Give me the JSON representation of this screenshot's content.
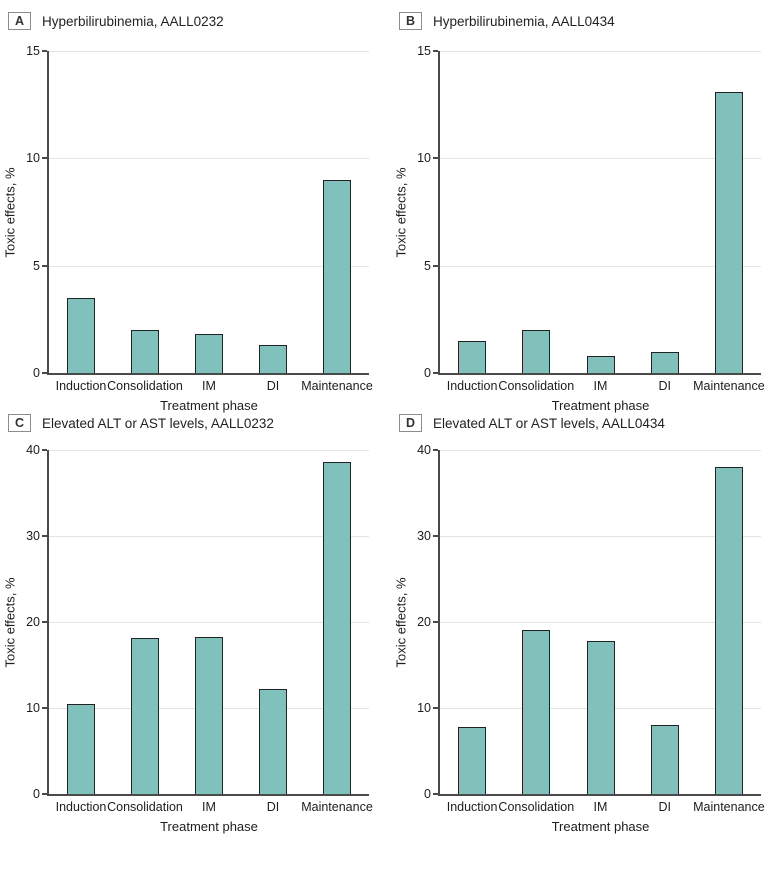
{
  "figure": {
    "background": "#ffffff",
    "colors": {
      "bar_fill": "#80c1bb",
      "bar_border": "#222222",
      "gridline": "#e4e4e4",
      "axis": "#4a4a4a",
      "text": "#1d1d1d",
      "panel_letter_border": "#8c8c8c"
    }
  },
  "chart_data": [
    {
      "type": "bar",
      "panel_letter": "A",
      "title": "Hyperbilirubinemia, AALL0232",
      "xlabel": "Treatment phase",
      "ylabel": "Toxic effects, %",
      "ylim": [
        0,
        15
      ],
      "yticks": [
        0,
        5,
        10,
        15
      ],
      "grid": "horizontal",
      "legend": "none",
      "categories": [
        "Induction",
        "Consolidation",
        "IM",
        "DI",
        "Maintenance"
      ],
      "values": [
        3.5,
        2.0,
        1.8,
        1.3,
        9.0
      ]
    },
    {
      "type": "bar",
      "panel_letter": "B",
      "title": "Hyperbilirubinemia, AALL0434",
      "xlabel": "Treatment phase",
      "ylabel": "Toxic effects, %",
      "ylim": [
        0,
        15
      ],
      "yticks": [
        0,
        5,
        10,
        15
      ],
      "grid": "horizontal",
      "legend": "none",
      "categories": [
        "Induction",
        "Consolidation",
        "IM",
        "DI",
        "Maintenance"
      ],
      "values": [
        1.5,
        2.0,
        0.8,
        1.0,
        13.1
      ]
    },
    {
      "type": "bar",
      "panel_letter": "C",
      "title": "Elevated ALT or AST levels, AALL0232",
      "xlabel": "Treatment phase",
      "ylabel": "Toxic effects, %",
      "ylim": [
        0,
        40
      ],
      "yticks": [
        0,
        10,
        20,
        30,
        40
      ],
      "grid": "horizontal",
      "legend": "none",
      "categories": [
        "Induction",
        "Consolidation",
        "IM",
        "DI",
        "Maintenance"
      ],
      "values": [
        10.5,
        18.2,
        18.3,
        12.2,
        38.6
      ]
    },
    {
      "type": "bar",
      "panel_letter": "D",
      "title": "Elevated ALT or AST levels, AALL0434",
      "xlabel": "Treatment phase",
      "ylabel": "Toxic effects, %",
      "ylim": [
        0,
        40
      ],
      "yticks": [
        0,
        10,
        20,
        30,
        40
      ],
      "grid": "horizontal",
      "legend": "none",
      "categories": [
        "Induction",
        "Consolidation",
        "IM",
        "DI",
        "Maintenance"
      ],
      "values": [
        7.8,
        19.1,
        17.8,
        8.0,
        38.0
      ]
    }
  ]
}
